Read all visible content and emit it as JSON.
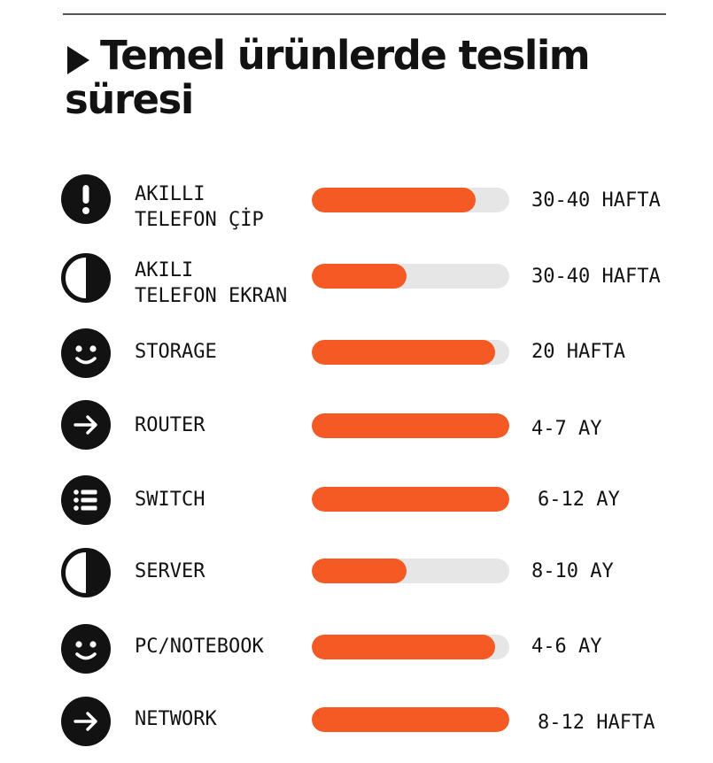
{
  "title": "Temel ürünlerde teslim süresi",
  "colors": {
    "accent": "#f55a24",
    "track": "#e6e6e6",
    "ink": "#121212"
  },
  "chart_data": {
    "type": "bar",
    "orientation": "horizontal",
    "title": "Temel ürünlerde teslim süresi",
    "categories": [
      "AKILLI TELEFON ÇİP",
      "AKILI TELEFON EKRAN",
      "STORAGE",
      "ROUTER",
      "SWITCH",
      "SERVER",
      "PC/NOTEBOOK",
      "NETWORK"
    ],
    "bar_fill_fraction": [
      0.83,
      0.48,
      0.93,
      1.0,
      1.0,
      0.48,
      0.93,
      1.0
    ],
    "value_labels": [
      "30-40 HAFTA",
      "30-40 HAFTA",
      "20 HAFTA",
      "4-7 AY",
      "6-12 AY",
      "8-10 AY",
      "4-6 AY",
      "8-12 HAFTA"
    ],
    "rows": [
      {
        "label_lines": [
          "AKILLI",
          "TELEFON ÇİP"
        ],
        "value": "30-40 HAFTA",
        "fill": 0.83,
        "icon": "exclamation-icon"
      },
      {
        "label_lines": [
          "AKILI",
          "TELEFON EKRAN"
        ],
        "value": "30-40 HAFTA",
        "fill": 0.48,
        "icon": "half-circle-icon"
      },
      {
        "label_lines": [
          "STORAGE"
        ],
        "value": "20 HAFTA",
        "fill": 0.93,
        "icon": "smiley-icon"
      },
      {
        "label_lines": [
          "ROUTER"
        ],
        "value": "4-7 AY",
        "fill": 1.0,
        "icon": "arrow-right-icon"
      },
      {
        "label_lines": [
          "SWITCH"
        ],
        "value": "6-12 AY",
        "fill": 1.0,
        "icon": "list-icon"
      },
      {
        "label_lines": [
          "SERVER"
        ],
        "value": "8-10 AY",
        "fill": 0.48,
        "icon": "half-circle-icon"
      },
      {
        "label_lines": [
          "PC/NOTEBOOK"
        ],
        "value": "4-6 AY",
        "fill": 0.93,
        "icon": "smiley-icon"
      },
      {
        "label_lines": [
          "NETWORK"
        ],
        "value": "8-12 HAFTA",
        "fill": 1.0,
        "icon": "arrow-right-icon"
      }
    ]
  }
}
